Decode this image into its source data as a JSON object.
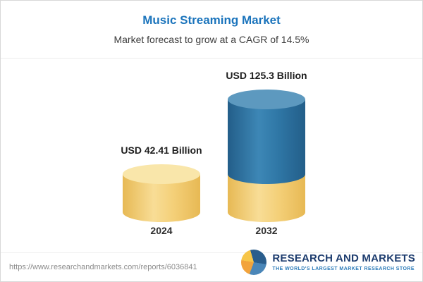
{
  "header": {
    "title": "Music Streaming Market",
    "subtitle": "Market forecast to grow at a CAGR of 14.5%"
  },
  "chart_data": {
    "type": "bar",
    "bar_style": "3d-cylinder",
    "title": "Music Streaming Market",
    "subtitle": "Market forecast to grow at a CAGR of 14.5%",
    "categories": [
      "2024",
      "2032"
    ],
    "values": [
      42.41,
      125.3
    ],
    "value_labels": [
      "USD 42.41 Billion",
      "USD 125.3 Billion"
    ],
    "unit": "USD Billion",
    "cagr_percent": 14.5,
    "legend": "none",
    "grid": false,
    "colors": {
      "bar_2024": "#F4D079",
      "bar_2032_top": "#2F77A6",
      "bar_2032_base": "#F4D079",
      "title_text": "#1B74BC"
    }
  },
  "footer": {
    "url": "https://www.researchandmarkets.com/reports/6036841",
    "brand": "RESEARCH AND MARKETS",
    "tagline": "THE WORLD'S LARGEST MARKET RESEARCH STORE"
  }
}
